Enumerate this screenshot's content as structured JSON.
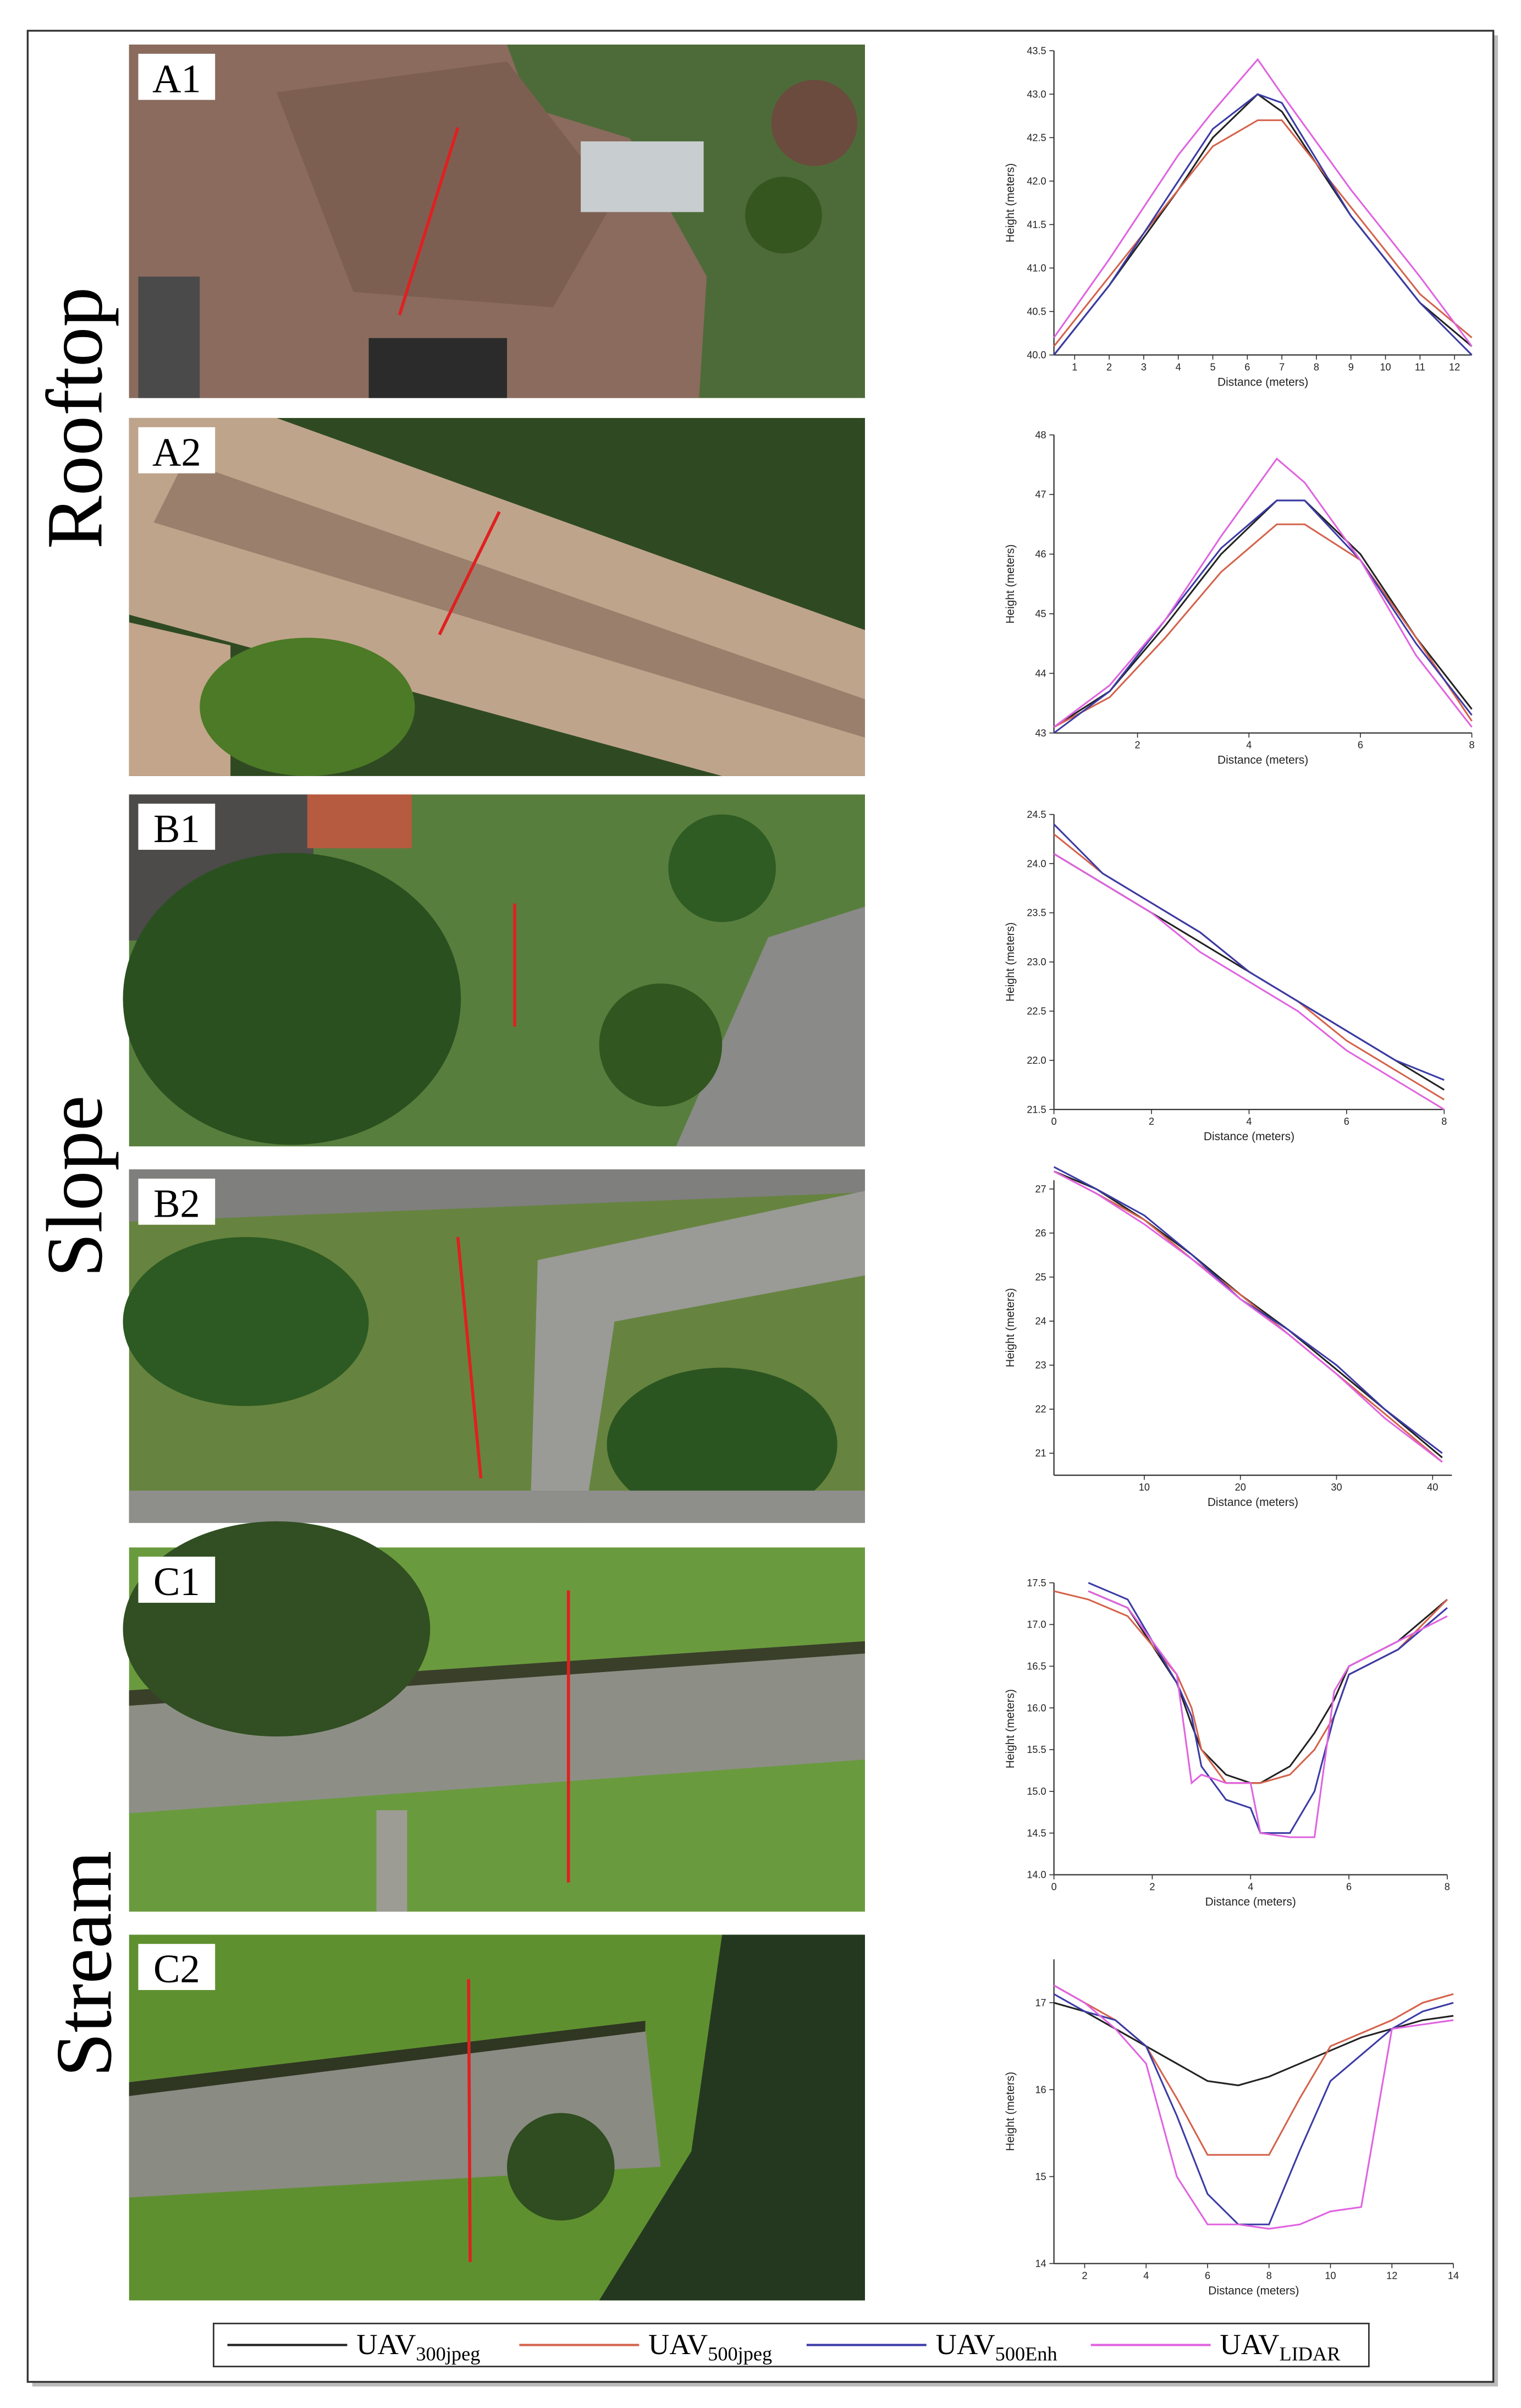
{
  "row_labels": [
    "Rooftop",
    "Slope",
    "Stream"
  ],
  "panel_labels": [
    "A1",
    "A2",
    "B1",
    "B2",
    "C1",
    "C2"
  ],
  "legend": [
    {
      "text": "UAV",
      "sub": "300jpeg",
      "color": "#222222"
    },
    {
      "text": "UAV",
      "sub": "500jpeg",
      "color": "#d4634c"
    },
    {
      "text": "UAV",
      "sub": "500Enh",
      "color": "#3b3ba6"
    },
    {
      "text": "UAV",
      "sub": "LIDAR",
      "color": "#e063e0"
    }
  ],
  "chart_data": [
    {
      "type": "line",
      "x_label": "Distance (meters)",
      "y_label": "Height (meters)",
      "x": [
        0.4,
        2,
        4,
        5,
        6.3,
        7,
        9,
        11,
        12.5
      ],
      "series": [
        {
          "color": "#222222",
          "values": [
            40.0,
            40.8,
            41.9,
            42.5,
            43.0,
            42.8,
            41.6,
            40.6,
            40.1
          ]
        },
        {
          "color": "#d4634c",
          "values": [
            40.1,
            40.9,
            41.9,
            42.4,
            42.7,
            42.7,
            41.7,
            40.7,
            40.2
          ]
        },
        {
          "color": "#3b3ba6",
          "values": [
            40.0,
            40.8,
            42.0,
            42.6,
            43.0,
            42.9,
            41.6,
            40.6,
            40.0
          ]
        },
        {
          "color": "#e063e0",
          "values": [
            40.2,
            41.1,
            42.3,
            42.8,
            43.4,
            43.0,
            41.9,
            40.9,
            40.1
          ]
        }
      ],
      "xlim": [
        0.4,
        12.5
      ],
      "ylim": [
        40,
        43.5
      ],
      "xticks": [
        1,
        2,
        3,
        4,
        5,
        6,
        7,
        8,
        9,
        10,
        11,
        12
      ],
      "yticks": [
        {
          "value": 40,
          "label": "40.0"
        },
        40.5,
        {
          "value": 41,
          "label": "41.0"
        },
        41.5,
        {
          "value": 42,
          "label": "42.0"
        },
        42.5,
        {
          "value": 43,
          "label": "43.0"
        },
        43.5
      ]
    },
    {
      "type": "line",
      "x_label": "Distance (meters)",
      "y_label": "Height (meters)",
      "x": [
        0.5,
        1.5,
        2.5,
        3.5,
        4.5,
        5,
        6,
        7,
        8
      ],
      "series": [
        {
          "color": "#222222",
          "values": [
            43.1,
            43.7,
            44.8,
            46.0,
            46.9,
            46.9,
            46.0,
            44.6,
            43.4
          ]
        },
        {
          "color": "#d4634c",
          "values": [
            43.1,
            43.6,
            44.6,
            45.7,
            46.5,
            46.5,
            45.9,
            44.6,
            43.2
          ]
        },
        {
          "color": "#3b3ba6",
          "values": [
            43.0,
            43.7,
            44.9,
            46.1,
            46.9,
            46.9,
            45.9,
            44.5,
            43.3
          ]
        },
        {
          "color": "#e063e0",
          "values": [
            43.1,
            43.8,
            44.9,
            46.3,
            47.6,
            47.2,
            45.9,
            44.3,
            43.1
          ]
        }
      ],
      "xlim": [
        0.5,
        8
      ],
      "ylim": [
        43,
        48
      ],
      "xticks": [
        2,
        4,
        6,
        8
      ],
      "yticks": [
        43,
        44,
        45,
        46,
        47,
        48
      ]
    },
    {
      "type": "line",
      "x_label": "Distance (meters)",
      "y_label": "Height (meters)",
      "x": [
        0,
        1,
        2,
        3,
        4,
        5,
        6,
        7,
        8
      ],
      "series": [
        {
          "color": "#222222",
          "values": [
            24.1,
            23.8,
            23.5,
            23.2,
            22.9,
            22.6,
            22.3,
            22.0,
            21.7
          ]
        },
        {
          "color": "#d4634c",
          "values": [
            24.3,
            23.9,
            23.6,
            23.3,
            22.9,
            22.6,
            22.2,
            21.9,
            21.6
          ]
        },
        {
          "color": "#3b3ba6",
          "values": [
            24.4,
            23.9,
            23.6,
            23.3,
            22.9,
            22.6,
            22.3,
            22.0,
            21.8
          ]
        },
        {
          "color": "#e063e0",
          "values": [
            24.1,
            23.8,
            23.5,
            23.1,
            22.8,
            22.5,
            22.1,
            21.8,
            21.5
          ]
        }
      ],
      "xlim": [
        0,
        8
      ],
      "ylim": [
        21.5,
        24.5
      ],
      "xticks": [
        0,
        2,
        4,
        6,
        8
      ],
      "yticks": [
        21.5,
        {
          "value": 22,
          "label": "22.0"
        },
        22.5,
        {
          "value": 23,
          "label": "23.0"
        },
        23.5,
        {
          "value": 24,
          "label": "24.0"
        },
        24.5
      ]
    },
    {
      "type": "line",
      "x_label": "Distance (meters)",
      "y_label": "Height (meters)",
      "x": [
        0.6,
        5,
        10,
        15,
        20,
        25,
        30,
        35,
        41
      ],
      "series": [
        {
          "color": "#222222",
          "values": [
            27.4,
            27.0,
            26.3,
            25.5,
            24.6,
            23.8,
            22.9,
            22.0,
            20.9
          ]
        },
        {
          "color": "#d4634c",
          "values": [
            27.4,
            26.9,
            26.3,
            25.4,
            24.6,
            23.7,
            22.8,
            21.9,
            20.8
          ]
        },
        {
          "color": "#3b3ba6",
          "values": [
            27.5,
            27.0,
            26.4,
            25.5,
            24.5,
            23.8,
            23.0,
            22.0,
            21.0
          ]
        },
        {
          "color": "#e063e0",
          "values": [
            27.4,
            26.9,
            26.2,
            25.4,
            24.5,
            23.7,
            22.8,
            21.8,
            20.8
          ]
        }
      ],
      "xlim": [
        0.6,
        42
      ],
      "ylim": [
        20.5,
        27.2
      ],
      "xticks": [
        10,
        20,
        30,
        40
      ],
      "yticks": [
        21,
        22,
        23,
        24,
        25,
        26,
        27
      ]
    },
    {
      "type": "line",
      "x_label": "Distance (meters)",
      "y_label": "Height (meters)",
      "x": [
        0,
        0.7,
        1.5,
        2.5,
        2.8,
        3,
        3.5,
        4,
        4.2,
        4.8,
        5.3,
        5.7,
        6,
        7,
        8
      ],
      "series": [
        {
          "color": "#222222",
          "values": [
            null,
            17.4,
            17.2,
            16.3,
            15.8,
            15.5,
            15.2,
            15.1,
            15.1,
            15.3,
            15.7,
            16.1,
            16.5,
            16.8,
            17.3
          ]
        },
        {
          "color": "#d4634c",
          "values": [
            17.4,
            17.3,
            17.1,
            16.4,
            16.0,
            15.5,
            15.1,
            15.1,
            15.1,
            15.2,
            15.5,
            15.9,
            16.4,
            16.7,
            17.3
          ]
        },
        {
          "color": "#3b3ba6",
          "values": [
            null,
            17.5,
            17.3,
            16.3,
            15.9,
            15.3,
            14.9,
            14.8,
            14.5,
            14.5,
            15.0,
            15.9,
            16.4,
            16.7,
            17.2
          ]
        },
        {
          "color": "#e063e0",
          "values": [
            null,
            17.4,
            17.2,
            16.4,
            15.1,
            15.2,
            15.1,
            15.1,
            14.5,
            14.45,
            14.45,
            16.2,
            16.5,
            16.8,
            17.1
          ]
        }
      ],
      "xlim": [
        0,
        8
      ],
      "ylim": [
        14,
        17.5
      ],
      "xticks": [
        0,
        2,
        4,
        6,
        8
      ],
      "yticks": [
        {
          "value": 14,
          "label": "14.0"
        },
        14.5,
        {
          "value": 15,
          "label": "15.0"
        },
        15.5,
        {
          "value": 16,
          "label": "16.0"
        },
        16.5,
        {
          "value": 17,
          "label": "17.0"
        },
        17.5
      ]
    },
    {
      "type": "line",
      "x_label": "Distance (meters)",
      "y_label": "Height (meters)",
      "x": [
        1,
        2,
        3,
        4,
        5,
        6,
        7,
        8,
        9,
        10,
        11,
        12,
        13,
        14
      ],
      "series": [
        {
          "color": "#222222",
          "values": [
            17.0,
            16.9,
            16.7,
            16.5,
            16.3,
            16.1,
            16.05,
            16.15,
            16.3,
            16.45,
            16.6,
            16.7,
            16.8,
            16.85
          ]
        },
        {
          "color": "#d4634c",
          "values": [
            17.2,
            17.0,
            16.8,
            16.5,
            15.9,
            15.25,
            15.25,
            15.25,
            15.9,
            16.5,
            16.65,
            16.8,
            17.0,
            17.1
          ]
        },
        {
          "color": "#3b3ba6",
          "values": [
            17.1,
            16.9,
            16.8,
            16.5,
            15.7,
            14.8,
            14.45,
            14.45,
            15.3,
            16.1,
            16.4,
            16.7,
            16.9,
            17.0
          ]
        },
        {
          "color": "#e063e0",
          "values": [
            17.2,
            17.0,
            16.7,
            16.3,
            15.0,
            14.45,
            14.45,
            14.4,
            14.45,
            14.6,
            14.65,
            16.7,
            16.75,
            16.8
          ]
        }
      ],
      "xlim": [
        1,
        14
      ],
      "ylim": [
        14,
        17.5
      ],
      "xticks": [
        2,
        4,
        6,
        8,
        10,
        12,
        14
      ],
      "yticks": [
        14,
        15,
        16,
        17
      ]
    }
  ]
}
